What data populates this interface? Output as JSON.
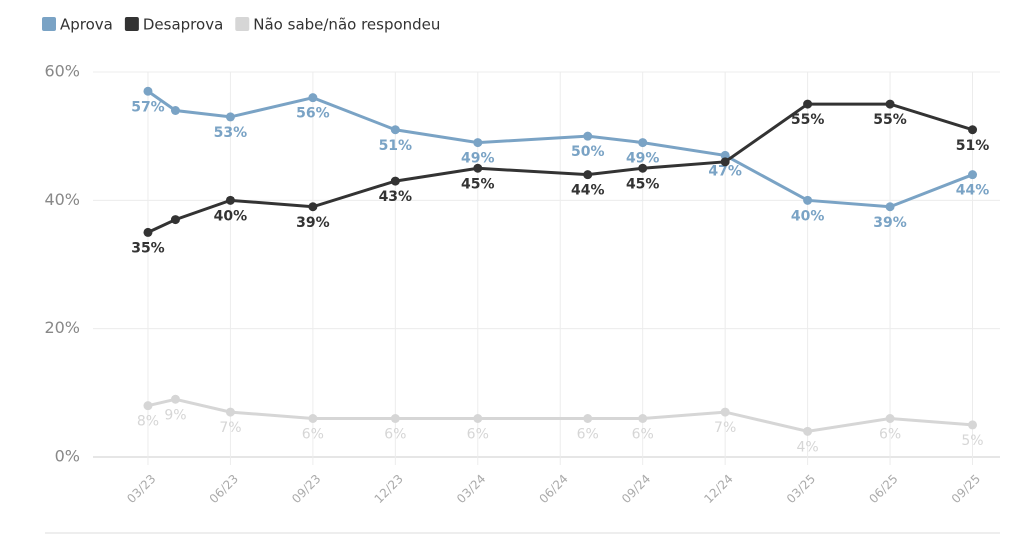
{
  "chart_data": {
    "type": "line",
    "x": [
      "03/23",
      "04/23",
      "06/23",
      "09/23",
      "12/23",
      "03/24",
      "07/24",
      "09/24",
      "12/24",
      "03/25",
      "06/25",
      "09/25"
    ],
    "xlim": [
      "01/23",
      "10/25"
    ],
    "xticks": [
      "03/23",
      "06/23",
      "09/23",
      "12/23",
      "03/24",
      "06/24",
      "09/24",
      "12/24",
      "03/25",
      "06/25",
      "09/25"
    ],
    "ylim": [
      0,
      60
    ],
    "yticks": [
      {
        "value": 0,
        "label": "0%"
      },
      {
        "value": 20,
        "label": "20%"
      },
      {
        "value": 40,
        "label": "40%"
      },
      {
        "value": 60,
        "label": "60%"
      }
    ],
    "grid": true,
    "legend": "top-left",
    "series": [
      {
        "name": "Aprova",
        "color": "#7aa3c5",
        "values": [
          57,
          54,
          53,
          56,
          51,
          49,
          50,
          49,
          47,
          40,
          39,
          44
        ],
        "value_labels": [
          "57%",
          null,
          "53%",
          "56%",
          "51%",
          "49%",
          "50%",
          "49%",
          "47%",
          "40%",
          "39%",
          "44%"
        ]
      },
      {
        "name": "Desaprova",
        "color": "#333333",
        "values": [
          35,
          37,
          40,
          39,
          43,
          45,
          44,
          45,
          46,
          55,
          55,
          51
        ],
        "value_labels": [
          "35%",
          null,
          "40%",
          "39%",
          "43%",
          "45%",
          "44%",
          "45%",
          null,
          "55%",
          "55%",
          "51%"
        ]
      },
      {
        "name": "Não sabe/não respondeu",
        "color": "#d6d6d6",
        "values": [
          8,
          9,
          7,
          6,
          6,
          6,
          6,
          6,
          7,
          4,
          6,
          5
        ],
        "value_labels": [
          "8%",
          "9%",
          "7%",
          "6%",
          "6%",
          "6%",
          "6%",
          "6%",
          "7%",
          "4%",
          "6%",
          "5%"
        ]
      }
    ]
  }
}
